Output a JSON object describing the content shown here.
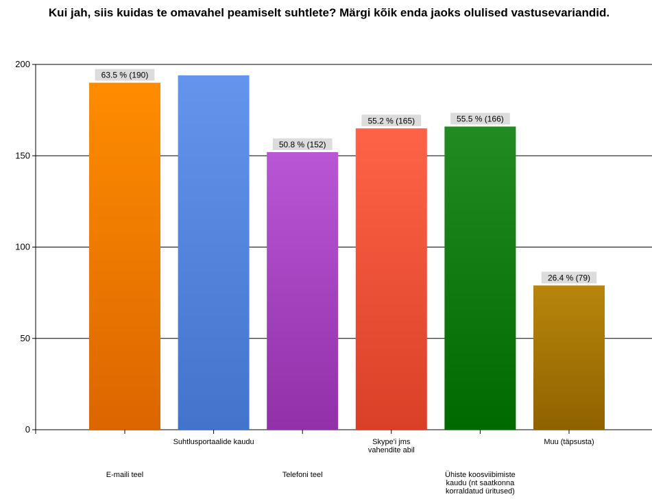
{
  "chart_data": {
    "type": "bar",
    "title": "Kui jah, siis kuidas te omavahel peamiselt suhtlete? Märgi kõik enda jaoks olulised vastusevariandid.",
    "categories": [
      "E-maili teel",
      "Suhtlusportaalide kaudu",
      "Telefoni teel",
      "Skype'i jms vahendite abil",
      "Ühiste koosviibimiste kaudu (nt saatkonna korraldatud üritused)",
      "Muu (täpsusta)"
    ],
    "category_lines": [
      [
        "E-maili teel"
      ],
      [
        "Suhtlusportaalide kaudu"
      ],
      [
        "Telefoni teel"
      ],
      [
        "Skype'i jms",
        "vahendite abil"
      ],
      [
        "Ühiste koosviibimiste",
        "kaudu (nt saatkonna",
        "korraldatud üritused)"
      ],
      [
        "Muu (täpsusta)"
      ]
    ],
    "values": [
      190,
      194,
      152,
      165,
      166,
      79
    ],
    "data_labels": [
      "63.5 % (190)",
      "",
      "50.8 % (152)",
      "55.2 % (165)",
      "55.5 % (166)",
      "26.4 % (79)"
    ],
    "colors": [
      [
        "#ff8c00",
        "#db6600"
      ],
      [
        "#6495ed",
        "#4274cc"
      ],
      [
        "#b956d6",
        "#9130a8"
      ],
      [
        "#ff6347",
        "#d94027"
      ],
      [
        "#228b22",
        "#006a00"
      ],
      [
        "#b8860b",
        "#8f6200"
      ]
    ],
    "xlabel": "",
    "ylabel": "",
    "ylim": [
      0,
      200
    ],
    "yticks": [
      0,
      50,
      100,
      150,
      200
    ],
    "grid": true,
    "legend": "none"
  }
}
